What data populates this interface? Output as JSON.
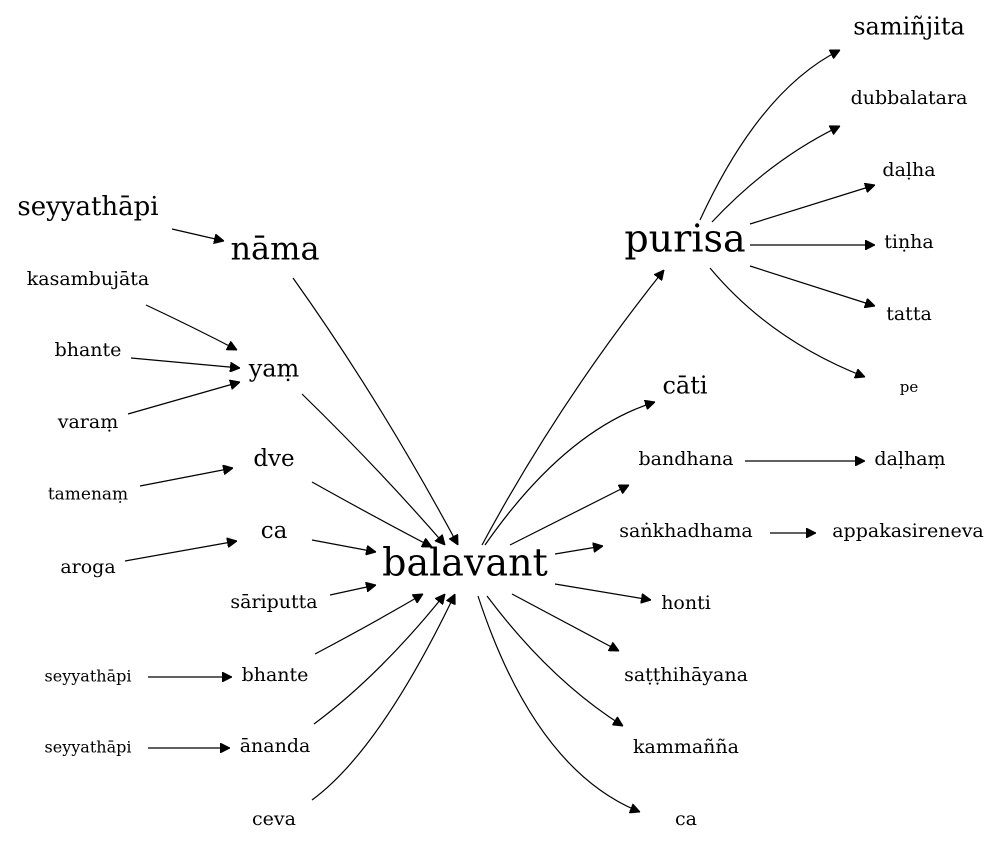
{
  "graph": {
    "center": "balavant",
    "nodes": {
      "balavant": "balavant",
      "nama": "nāma",
      "seyyathapi_1": "seyyathāpi",
      "yam": "yaṃ",
      "kasambujata": "kasambujāta",
      "bhante_1": "bhante",
      "varam": "varaṃ",
      "dve": "dve",
      "tamenam": "tamenaṃ",
      "ca_1": "ca",
      "aroga": "aroga",
      "sariputta": "sāriputta",
      "bhante_2": "bhante",
      "seyyathapi_2": "seyyathāpi",
      "ananda": "ānanda",
      "seyyathapi_3": "seyyathāpi",
      "ceva": "ceva",
      "purisa": "purisa",
      "saminjita": "samiñjita",
      "dubbalatara": "dubbalatara",
      "dalha": "daḷha",
      "tinha": "tiṇha",
      "tatta": "tatta",
      "pe": "pe",
      "cati": "cāti",
      "bandhana": "bandhana",
      "dalham": "daḷhaṃ",
      "sankhadhama": "saṅkhadhama",
      "appakasireneva": "appakasireneva",
      "honti": "honti",
      "satthihayana": "saṭṭhihāyana",
      "kammanna": "kammañña",
      "ca_2": "ca"
    },
    "edges": [
      [
        "seyyathapi_1",
        "nama"
      ],
      [
        "nama",
        "balavant"
      ],
      [
        "kasambujata",
        "yam"
      ],
      [
        "bhante_1",
        "yam"
      ],
      [
        "varam",
        "yam"
      ],
      [
        "yam",
        "balavant"
      ],
      [
        "tamenam",
        "dve"
      ],
      [
        "dve",
        "balavant"
      ],
      [
        "aroga",
        "ca_1"
      ],
      [
        "ca_1",
        "balavant"
      ],
      [
        "sariputta",
        "balavant"
      ],
      [
        "seyyathapi_2",
        "bhante_2"
      ],
      [
        "bhante_2",
        "balavant"
      ],
      [
        "seyyathapi_3",
        "ananda"
      ],
      [
        "ananda",
        "balavant"
      ],
      [
        "ceva",
        "balavant"
      ],
      [
        "balavant",
        "purisa"
      ],
      [
        "purisa",
        "saminjita"
      ],
      [
        "purisa",
        "dubbalatara"
      ],
      [
        "purisa",
        "dalha"
      ],
      [
        "purisa",
        "tinha"
      ],
      [
        "purisa",
        "tatta"
      ],
      [
        "purisa",
        "pe"
      ],
      [
        "balavant",
        "cati"
      ],
      [
        "balavant",
        "bandhana"
      ],
      [
        "bandhana",
        "dalham"
      ],
      [
        "balavant",
        "sankhadhama"
      ],
      [
        "sankhadhama",
        "appakasireneva"
      ],
      [
        "balavant",
        "honti"
      ],
      [
        "balavant",
        "satthihayana"
      ],
      [
        "balavant",
        "kammanna"
      ],
      [
        "balavant",
        "ca_2"
      ]
    ]
  }
}
